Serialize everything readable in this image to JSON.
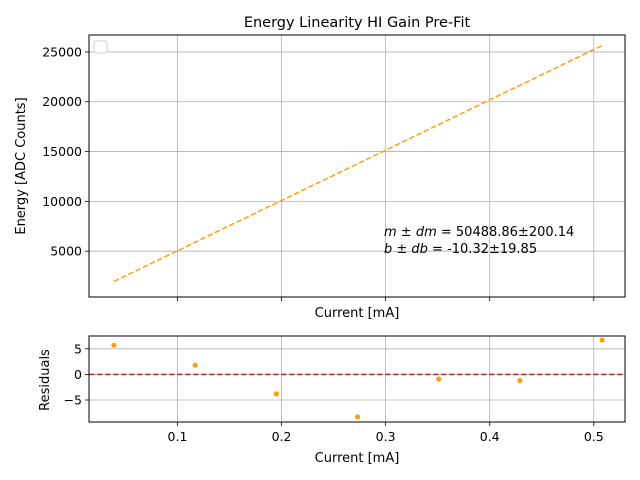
{
  "chart_data": [
    {
      "type": "line",
      "title": "Energy Linearity HI Gain Pre-Fit",
      "xlabel": "Current [mA]",
      "ylabel": "Energy [ADC Counts]",
      "xlim": [
        0.015,
        0.53
      ],
      "ylim": [
        400,
        26700
      ],
      "yticks": [
        5000,
        10000,
        15000,
        20000,
        25000
      ],
      "xticks": [
        0.1,
        0.2,
        0.3,
        0.4,
        0.5
      ],
      "show_xtick_labels": false,
      "grid": true,
      "legend": "top-left (empty)",
      "series": [
        {
          "style": "dashed",
          "color": "#ff9f0e",
          "x": [
            0.039,
            0.508
          ],
          "y": [
            1959,
            25638
          ]
        }
      ],
      "annotation": {
        "line1_label": "m ± dm",
        "line1_value": " = 50488.86±200.14",
        "line2_label": "b ± db",
        "line2_value": " = -10.32±19.85",
        "x": 0.3,
        "y": 7200
      }
    },
    {
      "type": "scatter",
      "xlabel": "Current [mA]",
      "ylabel": "Residuals",
      "xlim": [
        0.015,
        0.53
      ],
      "ylim": [
        -9.3,
        7.5
      ],
      "yticks": [
        -5,
        0,
        5
      ],
      "xticks": [
        0.1,
        0.2,
        0.3,
        0.4,
        0.5
      ],
      "xtick_labels": [
        "0.1",
        "0.2",
        "0.3",
        "0.4",
        "0.5"
      ],
      "grid": true,
      "reference_line": {
        "y": 0,
        "style": "dashed",
        "color": "#d62728"
      },
      "series": [
        {
          "color": "#ff9f0e",
          "x": [
            0.039,
            0.117,
            0.195,
            0.273,
            0.351,
            0.429,
            0.508
          ],
          "y": [
            5.7,
            1.8,
            -3.8,
            -8.3,
            -0.9,
            -1.2,
            6.7
          ]
        }
      ]
    }
  ]
}
